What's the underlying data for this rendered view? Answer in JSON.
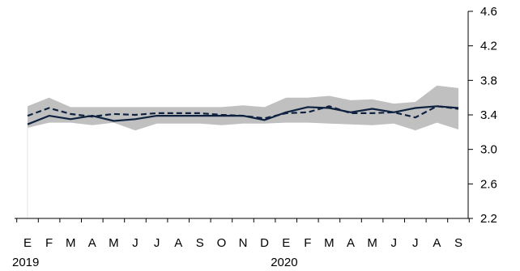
{
  "chart_data": {
    "type": "line",
    "title": "",
    "xlabel": "",
    "ylabel": "",
    "categories": [
      "E",
      "F",
      "M",
      "A",
      "M",
      "J",
      "J",
      "A",
      "S",
      "O",
      "N",
      "D",
      "E",
      "F",
      "M",
      "A",
      "M",
      "J",
      "J",
      "A",
      "S"
    ],
    "year_labels": [
      {
        "label": "2019",
        "category_index": 0
      },
      {
        "label": "2020",
        "category_index": 12
      }
    ],
    "yaxis": {
      "position": "right",
      "ylim": [
        2.2,
        4.6
      ],
      "ticks": [
        "2.2",
        "2.6",
        "3.0",
        "3.4",
        "3.8",
        "4.2",
        "4.6"
      ]
    },
    "band": {
      "color": "#c0c0c0",
      "upper": [
        3.5,
        3.6,
        3.49,
        3.49,
        3.49,
        3.49,
        3.49,
        3.49,
        3.49,
        3.49,
        3.51,
        3.49,
        3.6,
        3.6,
        3.62,
        3.57,
        3.58,
        3.53,
        3.55,
        3.74,
        3.71
      ],
      "lower": [
        3.25,
        3.31,
        3.31,
        3.28,
        3.31,
        3.22,
        3.3,
        3.3,
        3.3,
        3.28,
        3.3,
        3.3,
        3.31,
        3.31,
        3.3,
        3.29,
        3.28,
        3.3,
        3.22,
        3.31,
        3.23
      ]
    },
    "series": [
      {
        "style": "solid",
        "color": "#0e2240",
        "values": [
          3.29,
          3.39,
          3.35,
          3.39,
          3.33,
          3.35,
          3.39,
          3.39,
          3.39,
          3.39,
          3.39,
          3.34,
          3.43,
          3.49,
          3.48,
          3.43,
          3.47,
          3.43,
          3.48,
          3.5,
          3.48
        ]
      },
      {
        "style": "dashed",
        "color": "#0e2240",
        "values": [
          3.39,
          3.48,
          3.41,
          3.38,
          3.41,
          3.4,
          3.42,
          3.42,
          3.42,
          3.4,
          3.39,
          3.36,
          3.42,
          3.43,
          3.5,
          3.42,
          3.42,
          3.43,
          3.37,
          3.5,
          3.47
        ]
      }
    ]
  }
}
